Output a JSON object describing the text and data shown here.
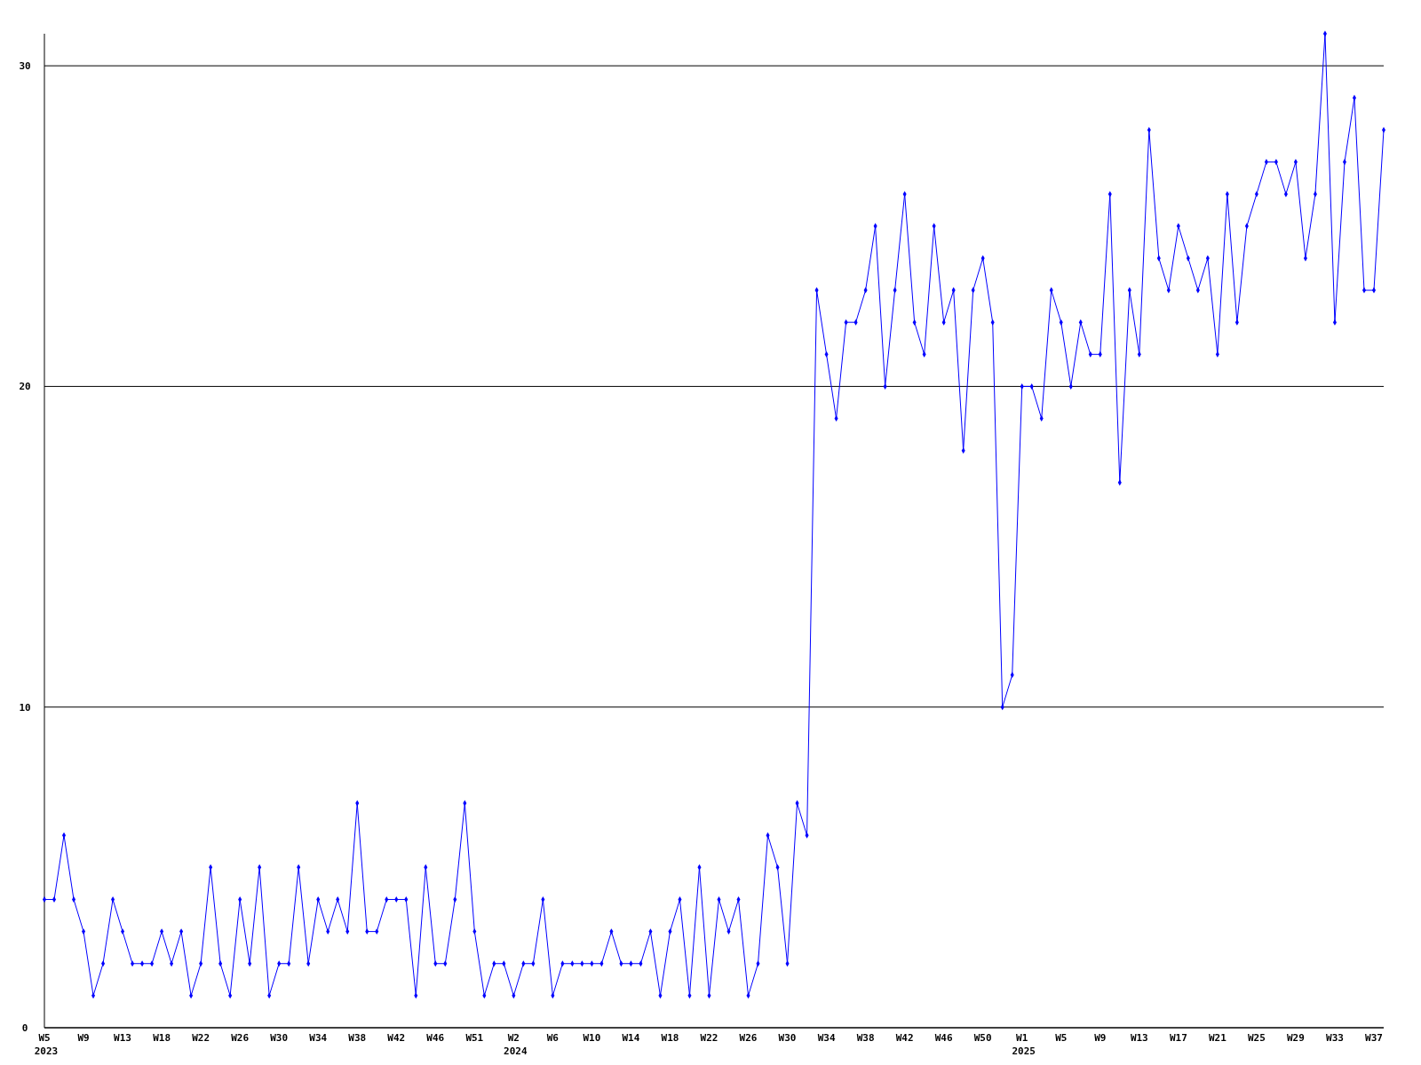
{
  "chart_data": {
    "type": "line",
    "categories": [
      "W5",
      null,
      null,
      null,
      "W9",
      null,
      null,
      null,
      "W13",
      null,
      null,
      null,
      "W18",
      null,
      null,
      null,
      "W22",
      null,
      null,
      null,
      "W26",
      null,
      null,
      null,
      "W30",
      null,
      null,
      null,
      "W34",
      null,
      null,
      null,
      "W38",
      null,
      null,
      null,
      "W42",
      null,
      null,
      null,
      "W46",
      null,
      null,
      null,
      "W51",
      null,
      null,
      null,
      "W2",
      null,
      null,
      null,
      "W6",
      null,
      null,
      null,
      "W10",
      null,
      null,
      null,
      "W14",
      null,
      null,
      null,
      "W18",
      null,
      null,
      null,
      "W22",
      null,
      null,
      null,
      "W26",
      null,
      null,
      null,
      "W30",
      null,
      null,
      null,
      "W34",
      null,
      null,
      null,
      "W38",
      null,
      null,
      null,
      "W42",
      null,
      null,
      null,
      "W46",
      null,
      null,
      null,
      "W50",
      null,
      null,
      null,
      "W1",
      null,
      null,
      null,
      "W5",
      null,
      null,
      null,
      "W9",
      null,
      null,
      null,
      "W13",
      null,
      null,
      null,
      "W17",
      null,
      null,
      null,
      "W21",
      null,
      null,
      null,
      "W25",
      null,
      null,
      null,
      "W29",
      null,
      null,
      null,
      "W33",
      null,
      null,
      null,
      "W37",
      null
    ],
    "series": [
      {
        "color": "#0000ff",
        "values": [
          4,
          4,
          6,
          4,
          3,
          1,
          2,
          4,
          3,
          2,
          2,
          2,
          3,
          2,
          3,
          1,
          2,
          5,
          2,
          1,
          4,
          2,
          5,
          1,
          2,
          2,
          5,
          2,
          4,
          3,
          4,
          3,
          7,
          3,
          3,
          4,
          4,
          4,
          1,
          5,
          2,
          2,
          4,
          7,
          3,
          1,
          2,
          2,
          1,
          2,
          2,
          4,
          1,
          2,
          2,
          2,
          2,
          2,
          3,
          2,
          2,
          2,
          3,
          1,
          3,
          4,
          1,
          5,
          1,
          4,
          3,
          4,
          1,
          2,
          6,
          5,
          2,
          7,
          6,
          23,
          21,
          19,
          22,
          22,
          23,
          25,
          20,
          23,
          26,
          22,
          21,
          25,
          22,
          23,
          18,
          23,
          24,
          22,
          10,
          11,
          20,
          20,
          19,
          23,
          22,
          20,
          22,
          21,
          21,
          26,
          17,
          23,
          21,
          28,
          24,
          23,
          25,
          24,
          23,
          24,
          21,
          26,
          22,
          25,
          26,
          27,
          27,
          26,
          27,
          24,
          26,
          31,
          22,
          27,
          29,
          23,
          23,
          28
        ]
      }
    ],
    "ylim": [
      0,
      31
    ],
    "yticks": [
      0,
      10,
      20,
      30
    ],
    "grid": "y",
    "marker": "diamond",
    "line_style": "solid",
    "annotations": [
      "2023",
      "2024",
      "2025"
    ]
  }
}
